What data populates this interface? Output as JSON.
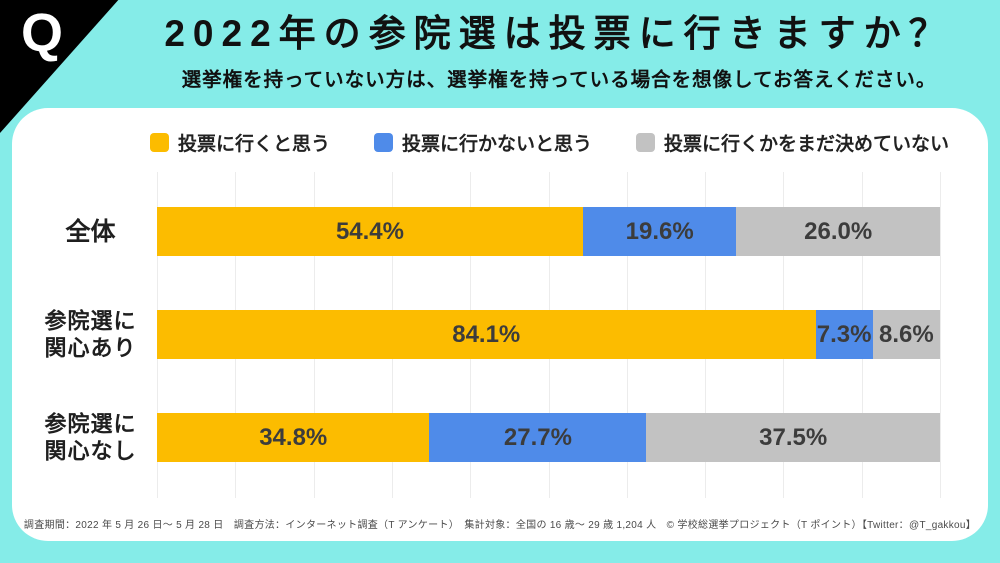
{
  "header": {
    "q_mark": "Q",
    "title": "2022年の参院選は投票に行きますか？",
    "subtitle": "選挙権を持っていない方は、選挙権を持っている場合を想像してお答えください。"
  },
  "chart_data": {
    "type": "bar",
    "orientation": "horizontal",
    "stacked": true,
    "unit": "%",
    "xlim": [
      0,
      100
    ],
    "gridline_interval": 10,
    "grid": true,
    "legend_position": "top",
    "categories": [
      "全体",
      "参院選に関心あり",
      "参院選に関心なし"
    ],
    "category_display_lines": [
      [
        "全体"
      ],
      [
        "参院選に",
        "関心あり"
      ],
      [
        "参院選に",
        "関心なし"
      ]
    ],
    "series": [
      {
        "name": "投票に行くと思う",
        "color": "#FCBC00",
        "values": [
          54.4,
          84.1,
          34.8
        ]
      },
      {
        "name": "投票に行かないと思う",
        "color": "#4F8BE9",
        "values": [
          19.6,
          7.3,
          27.7
        ]
      },
      {
        "name": "投票に行くかをまだ決めていない",
        "color": "#C2C2C2",
        "values": [
          26.0,
          8.6,
          37.5
        ]
      }
    ]
  },
  "footer": {
    "text": "調査期間：2022 年 5 月 26 日～ 5 月 28 日　調査方法：インターネット調査（T アンケート）　集計対象：全国の 16 歳～ 29 歳 1,204 人　© 学校総選挙プロジェクト（T ポイント）【Twitter：@T_gakkou】"
  },
  "colors": {
    "background": "#85ECE8",
    "card": "#FFFFFF",
    "q_block": "#000000",
    "q_text": "#FFFFFF",
    "title_text": "#111111",
    "bar_value_text": "#3C3C3C",
    "category_text": "#1F1F1F",
    "legend_text": "#222222",
    "gridline": "#ECECEC",
    "footer_text": "#4A4A4A"
  }
}
